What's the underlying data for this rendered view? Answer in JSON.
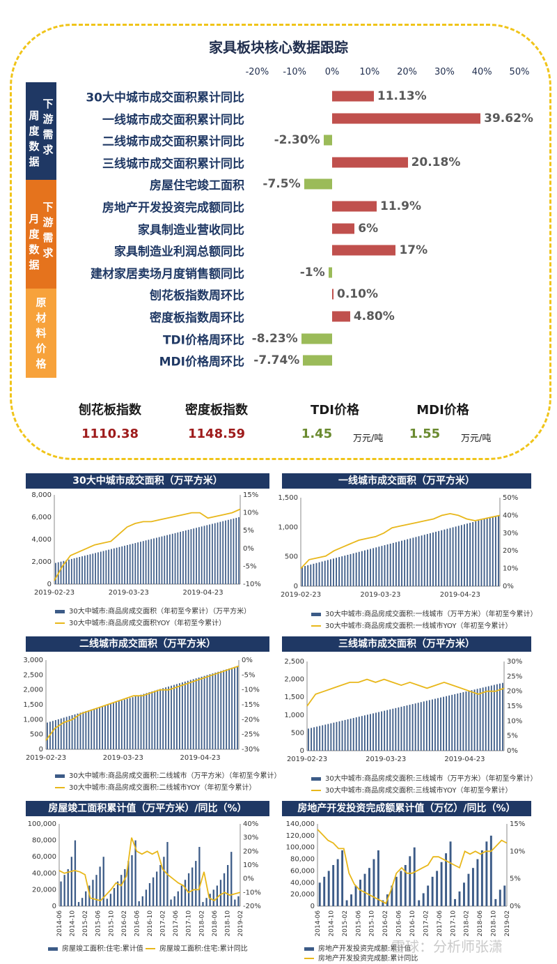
{
  "title": "家具板块核心数据跟踪",
  "axis_ticks": [
    "-20%",
    "-10%",
    "0%",
    "10%",
    "20%",
    "30%",
    "40%",
    "50%"
  ],
  "side_groups": [
    {
      "text_left": "周度数据",
      "text_right": "下游需求",
      "color": "#1f3864"
    },
    {
      "text_left": "月度数据",
      "text_right": "下游需求",
      "color": "#e5731d"
    },
    {
      "text_center": "原材料价格",
      "color": "#f7a23b"
    }
  ],
  "indicators": [
    {
      "label": "30大中城市成交面积累计同比",
      "value": 11.13,
      "display": "11.13%",
      "color": "#c0504d"
    },
    {
      "label": "一线城市成交面积累计同比",
      "value": 39.62,
      "display": "39.62%",
      "color": "#c0504d"
    },
    {
      "label": "二线城市成交面积累计同比",
      "value": -2.3,
      "display": "-2.30%",
      "color": "#9bbb59"
    },
    {
      "label": "三线城市成交面积累计同比",
      "value": 20.18,
      "display": "20.18%",
      "color": "#c0504d"
    },
    {
      "label": "房屋住宅竣工面积",
      "value": -7.5,
      "display": "-7.5%",
      "color": "#9bbb59"
    },
    {
      "label": "房地产开发投资完成额同比",
      "value": 11.9,
      "display": "11.9%",
      "color": "#c0504d"
    },
    {
      "label": "家具制造业营收同比",
      "value": 6,
      "display": "6%",
      "color": "#c0504d"
    },
    {
      "label": "家具制造业利润总额同比",
      "value": 17,
      "display": "17%",
      "color": "#c0504d"
    },
    {
      "label": "建材家居卖场月度销售额同比",
      "value": -1,
      "display": "-1%",
      "color": "#9bbb59"
    },
    {
      "label": "刨花板指数周环比",
      "value": 0.1,
      "display": "0.10%",
      "color": "#c0504d"
    },
    {
      "label": "密度板指数周环比",
      "value": 4.8,
      "display": "4.80%",
      "color": "#c0504d"
    },
    {
      "label": "TDI价格周环比",
      "value": -8.23,
      "display": "-8.23%",
      "color": "#9bbb59"
    },
    {
      "label": "MDI价格周环比",
      "value": -7.74,
      "display": "-7.74%",
      "color": "#9bbb59"
    }
  ],
  "kpis": [
    {
      "label": "刨花板指数",
      "value": "1110.38",
      "unit": "",
      "color": "#9e1b1b"
    },
    {
      "label": "密度板指数",
      "value": "1148.59",
      "unit": "",
      "color": "#9e1b1b"
    },
    {
      "label": "TDI价格",
      "value": "1.45",
      "unit": "万元/吨",
      "color": "#6a8a2f"
    },
    {
      "label": "MDI价格",
      "value": "1.55",
      "unit": "万元/吨",
      "color": "#6a8a2f"
    }
  ],
  "chart_data": [
    {
      "type": "bar+line",
      "title": "30大中城市成交面积（万平方米）",
      "xticks": [
        "2019-02-23",
        "2019-03-23",
        "2019-04-23"
      ],
      "y_left": {
        "range": [
          0,
          8000
        ],
        "ticks": [
          "0",
          "2,000",
          "4,000",
          "6,000",
          "8,000"
        ]
      },
      "y_right": {
        "range": [
          -10,
          15
        ],
        "ticks": [
          "-10%",
          "-5%",
          "0%",
          "5%",
          "10%",
          "15%"
        ]
      },
      "bar_series": {
        "name": "30大中城市:商品房成交面积（年初至今累计）（万平方米）",
        "start": 1900,
        "end": 6000
      },
      "line_series": {
        "name": "30大中城市:商品房成交面积YOY（年初至今累计）",
        "values": [
          -9,
          -5,
          -2,
          -1,
          0,
          1,
          1.5,
          2,
          4,
          6,
          7,
          7.5,
          7.5,
          8,
          8.5,
          9,
          9.5,
          10,
          10,
          8.5,
          9,
          9.5,
          10,
          11
        ]
      }
    },
    {
      "type": "bar+line",
      "title": "一线城市成交面积（万平方米）",
      "xticks": [
        "2019-02-23",
        "2019-03-23",
        "2019-04-23"
      ],
      "y_left": {
        "range": [
          0,
          1500
        ],
        "ticks": [
          "0",
          "500",
          "1,000",
          "1,500"
        ]
      },
      "y_right": {
        "range": [
          0,
          50
        ],
        "ticks": [
          "0%",
          "10%",
          "20%",
          "30%",
          "40%",
          "50%"
        ]
      },
      "bar_series": {
        "name": "30大中城市:商品房成交面积:一线城市（万平方米）（年初至今累计）",
        "start": 330,
        "end": 1200
      },
      "line_series": {
        "name": "30大中城市:商品房成交面积:一线城市YOY（年初至今累计）",
        "values": [
          10,
          15,
          16,
          17,
          20,
          22,
          24,
          26,
          27,
          28,
          30,
          33,
          34,
          35,
          36,
          37,
          38,
          40,
          41,
          40,
          38,
          37,
          38,
          39,
          40
        ]
      }
    },
    {
      "type": "bar+line",
      "title": "二线城市成交面积（万平方米）",
      "xticks": [
        "2019-02-23",
        "2019-03-23",
        "2019-04-23"
      ],
      "y_left": {
        "range": [
          0,
          3000
        ],
        "ticks": [
          "0",
          "500",
          "1,000",
          "1,500",
          "2,000",
          "2,500",
          "3,000"
        ]
      },
      "y_right": {
        "range": [
          -30,
          0
        ],
        "ticks": [
          "-30%",
          "-25%",
          "-20%",
          "-15%",
          "-10%",
          "-5%",
          "0%"
        ]
      },
      "bar_series": {
        "name": "30大中城市:商品房成交面积:二线城市（万平方米）（年初至今累计）",
        "start": 900,
        "end": 2800
      },
      "line_series": {
        "name": "30大中城市:商品房成交面积:二线城市YOY（年初至今累计）",
        "values": [
          -27,
          -23,
          -21,
          -20,
          -18,
          -17,
          -16,
          -15,
          -14,
          -13,
          -12,
          -12,
          -11,
          -10,
          -10,
          -9,
          -8,
          -7,
          -6,
          -5,
          -4,
          -3,
          -2
        ]
      }
    },
    {
      "type": "bar+line",
      "title": "三线城市成交面积（万平方米）",
      "xticks": [
        "2019-02-23",
        "2019-03-23",
        "2019-04-23"
      ],
      "y_left": {
        "range": [
          0,
          2500
        ],
        "ticks": [
          "0",
          "500",
          "1,000",
          "1,500",
          "2,000",
          "2,500"
        ]
      },
      "y_right": {
        "range": [
          0,
          30
        ],
        "ticks": [
          "0%",
          "5%",
          "10%",
          "15%",
          "20%",
          "25%",
          "30%"
        ]
      },
      "bar_series": {
        "name": "30大中城市:商品房成交面积:三线城市（万平方米）（年初至今累计）",
        "start": 620,
        "end": 1900
      },
      "line_series": {
        "name": "30大中城市:商品房成交面积:三线城市YOY（年初至今累计）",
        "values": [
          15,
          19,
          20,
          21,
          22,
          23,
          23,
          24,
          23,
          24,
          23,
          22,
          23,
          22,
          21,
          22,
          23,
          22,
          21,
          20,
          19,
          20,
          20,
          21
        ]
      }
    },
    {
      "type": "bar+line",
      "title": "房屋竣工面积累计值（万平方米）/同比（%）",
      "xticks": [
        "2014-06",
        "2014-10",
        "2015-02",
        "2015-06",
        "2015-10",
        "2016-02",
        "2016-06",
        "2016-10",
        "2017-02",
        "2017-06",
        "2017-10",
        "2018-02",
        "2018-06",
        "2018-10",
        "2019-02"
      ],
      "y_left": {
        "range": [
          0,
          100000
        ],
        "ticks": [
          "0",
          "20,000",
          "40,000",
          "60,000",
          "80,000",
          "100,000"
        ]
      },
      "y_right": {
        "range": [
          -20,
          40
        ],
        "ticks": [
          "-20%",
          "-10%",
          "0%",
          "10%",
          "20%",
          "30%",
          "40%"
        ]
      },
      "bar_series": {
        "name": "房屋竣工面积:住宅:累计值",
        "values": [
          30000,
          38000,
          45000,
          60000,
          80000,
          5000,
          10000,
          18000,
          25000,
          32000,
          38000,
          48000,
          60000,
          9000,
          15000,
          22000,
          30000,
          38000,
          45000,
          55000,
          62000,
          80000,
          6000,
          12000,
          20000,
          28000,
          35000,
          42000,
          50000,
          60000,
          78000,
          8000,
          12000,
          18000,
          25000,
          32000,
          40000,
          47000,
          55000,
          72000,
          5000,
          10000,
          15000,
          20000,
          25000,
          32000,
          40000,
          50000,
          66000,
          8000,
          12000
        ]
      },
      "line_series": {
        "name": "房屋竣工面积:住宅:累计同比",
        "values": [
          6,
          4,
          5,
          6,
          5,
          3,
          -14,
          -15,
          -16,
          -12,
          -8,
          -3,
          -5,
          2,
          30,
          20,
          18,
          20,
          18,
          20,
          7,
          3,
          0,
          -3,
          -5,
          -10,
          -8,
          -8,
          5,
          -14,
          -16,
          -12,
          -10,
          -12,
          -11,
          -10
        ]
      }
    },
    {
      "type": "bar+line",
      "title": "房地产开发投资完成额累计值（万亿）/同比（%）",
      "xticks": [
        "2014-06",
        "2014-10",
        "2015-02",
        "2015-06",
        "2015-10",
        "2016-02",
        "2016-06",
        "2016-10",
        "2017-02",
        "2017-06",
        "2017-10",
        "2018-02",
        "2018-06",
        "2018-10",
        "2019-02"
      ],
      "y_left": {
        "range": [
          0,
          140000
        ],
        "ticks": [
          "0",
          "20,000",
          "40,000",
          "60,000",
          "80,000",
          "100,000",
          "120,000",
          "140,000"
        ]
      },
      "y_right": {
        "range": [
          0,
          15
        ],
        "ticks": [
          "0%",
          "5%",
          "10%",
          "15%"
        ]
      },
      "bar_series": {
        "name": "房地产开发投资完成额:累计值",
        "values": [
          40000,
          50000,
          60000,
          70000,
          80000,
          95000,
          10000,
          20000,
          35000,
          45000,
          55000,
          65000,
          80000,
          95000,
          10000,
          20000,
          35000,
          50000,
          60000,
          70000,
          85000,
          100000,
          10000,
          22000,
          35000,
          50000,
          60000,
          75000,
          90000,
          110000,
          12000,
          25000,
          40000,
          55000,
          65000,
          80000,
          95000,
          110000,
          120000,
          12000,
          28000,
          35000
        ]
      },
      "line_series": {
        "name": "房地产开发投资完成额:累计同比",
        "values": [
          14,
          13,
          12,
          11.5,
          10.5,
          10.5,
          6,
          4,
          3,
          2.5,
          2,
          1.5,
          1,
          0.5,
          3,
          6,
          7,
          6,
          6,
          6.5,
          7,
          7.5,
          9,
          9,
          8.5,
          8,
          7.5,
          7,
          10,
          9.5,
          10,
          9.5,
          10,
          10,
          11,
          12,
          11.5
        ]
      }
    }
  ],
  "watermark": "雪球：分析师张潇"
}
